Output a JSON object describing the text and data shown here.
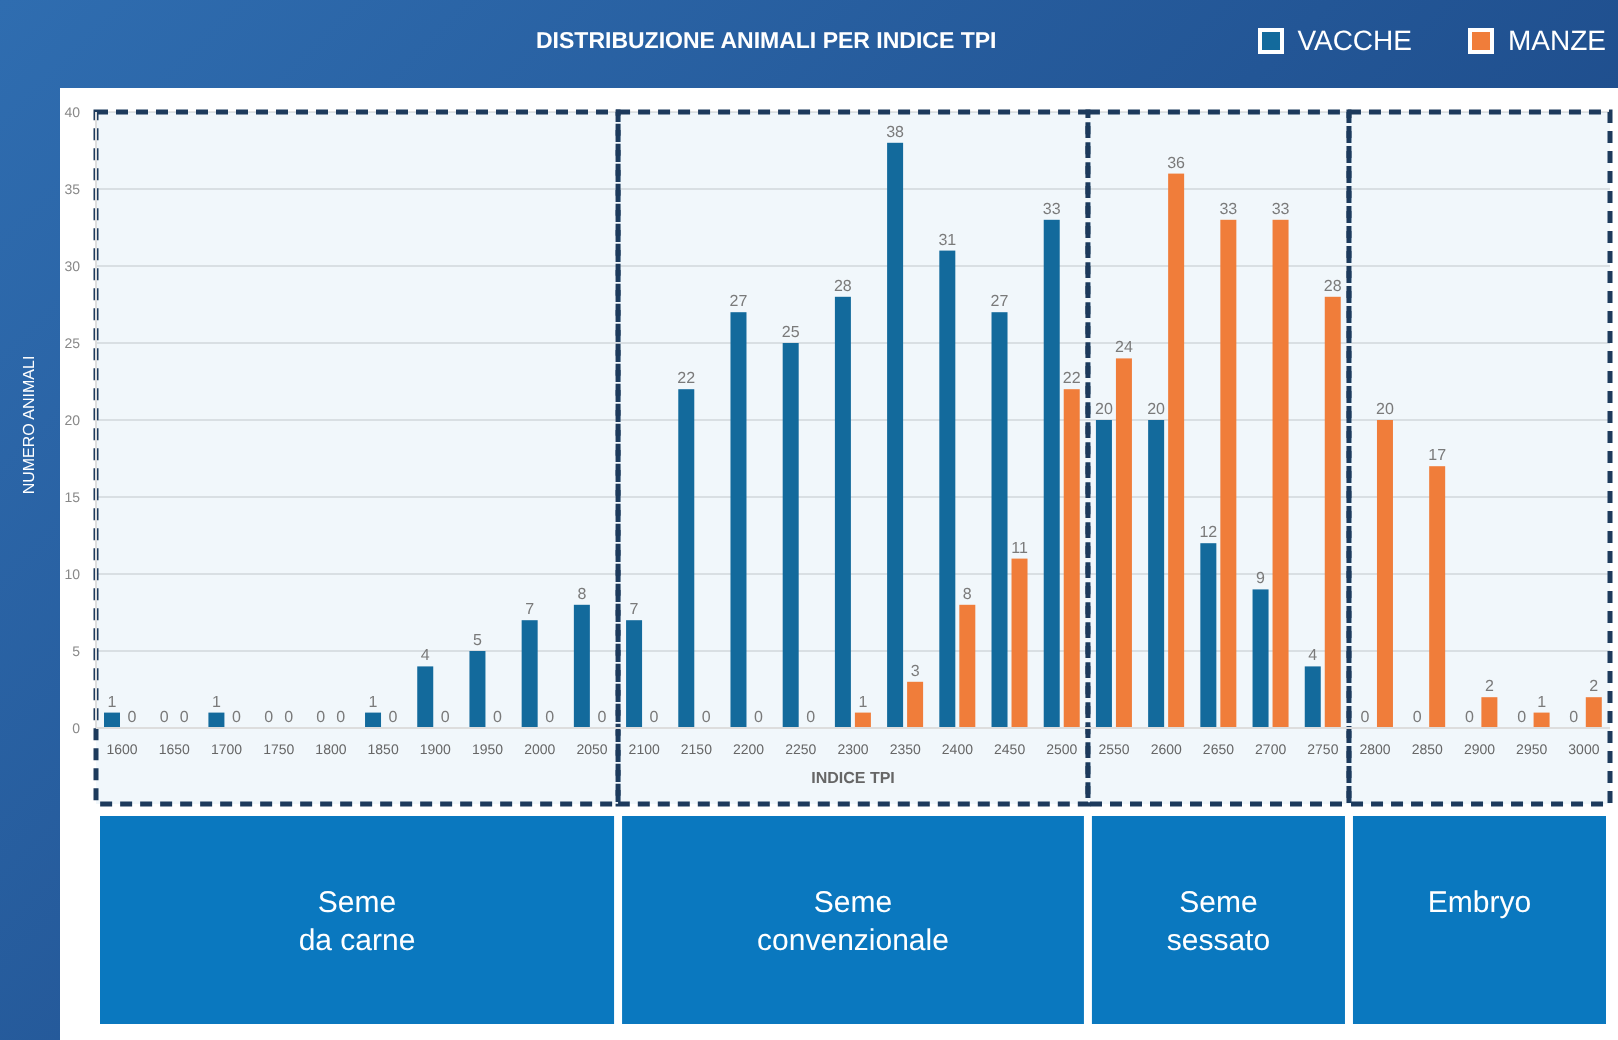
{
  "chart_data": {
    "type": "bar",
    "title": "DISTRIBUZIONE ANIMALI PER INDICE TPI",
    "xlabel": "INDICE TPI",
    "ylabel": "NUMERO ANIMALI",
    "categories": [
      "1600",
      "1650",
      "1700",
      "1750",
      "1800",
      "1850",
      "1900",
      "1950",
      "2000",
      "2050",
      "2100",
      "2150",
      "2200",
      "2250",
      "2300",
      "2350",
      "2400",
      "2450",
      "2500",
      "2550",
      "2600",
      "2650",
      "2700",
      "2750",
      "2800",
      "2850",
      "2900",
      "2950",
      "3000"
    ],
    "series": [
      {
        "name": "VACCHE",
        "color": "#136a9c",
        "values": [
          1,
          0,
          1,
          0,
          0,
          1,
          4,
          5,
          7,
          8,
          7,
          22,
          27,
          25,
          28,
          38,
          31,
          27,
          33,
          20,
          20,
          12,
          9,
          4,
          0,
          0,
          0,
          0,
          0
        ]
      },
      {
        "name": "MANZE",
        "color": "#f07d3a",
        "values": [
          0,
          0,
          0,
          0,
          0,
          0,
          0,
          0,
          0,
          0,
          0,
          0,
          0,
          0,
          1,
          3,
          8,
          11,
          22,
          24,
          36,
          33,
          33,
          28,
          20,
          17,
          2,
          1,
          2
        ]
      }
    ],
    "ylim": [
      0,
      40
    ],
    "yticks": [
      0,
      5,
      10,
      15,
      20,
      25,
      30,
      35,
      40
    ],
    "grid": "y",
    "legend": "top right",
    "data_labels": true,
    "bands": [
      {
        "axis": "x",
        "from": "1600",
        "to": "2050",
        "label": "Seme da carne",
        "color": "#0a78bf"
      },
      {
        "axis": "x",
        "from": "2100",
        "to": "2500",
        "label": "Seme convenzionale",
        "color": "#0a78bf"
      },
      {
        "axis": "x",
        "from": "2550",
        "to": "2750",
        "label": "Seme sessato",
        "color": "#0a78bf"
      },
      {
        "axis": "x",
        "from": "2800",
        "to": "3000",
        "label": "Embryo",
        "color": "#0a78bf"
      }
    ]
  }
}
